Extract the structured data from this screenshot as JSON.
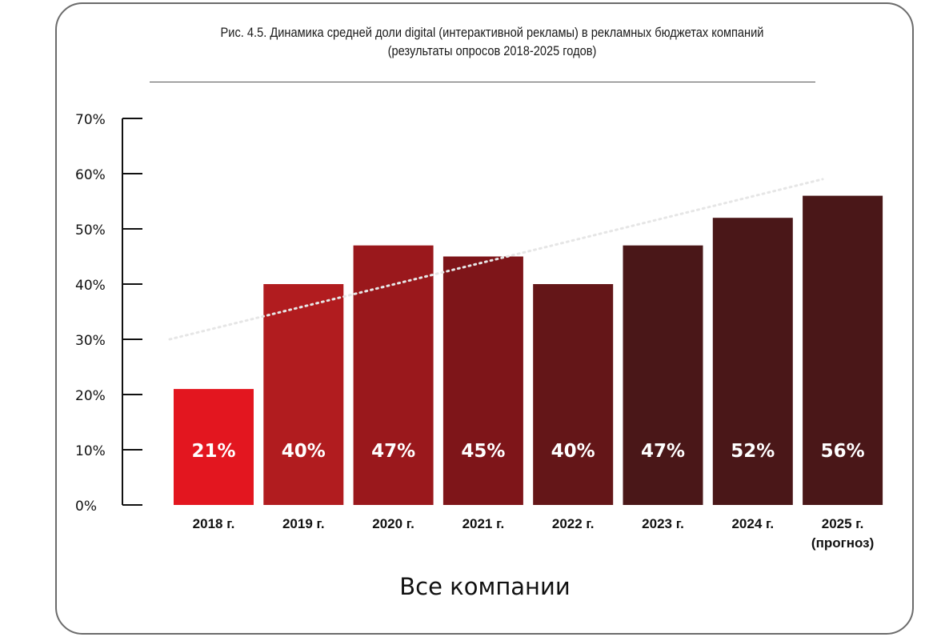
{
  "chart_data": {
    "type": "bar",
    "title": "Рис. 4.5. Динамика средней доли digital (интерактивной рекламы) в рекламных бюджетах компаний",
    "subtitle": "(результаты опросов 2018-2025 годов)",
    "xlabel": "Все компании",
    "ylabel": "",
    "ylim": [
      0,
      70
    ],
    "y_ticks": [
      "0%",
      "10%",
      "20%",
      "30%",
      "40%",
      "50%",
      "60%",
      "70%"
    ],
    "y_tick_values": [
      0,
      10,
      20,
      30,
      40,
      50,
      60,
      70
    ],
    "categories": [
      "2018 г.",
      "2019 г.",
      "2020 г.",
      "2021 г.",
      "2022 г.",
      "2023 г.",
      "2024 г.",
      "2025 г."
    ],
    "category_notes": [
      "",
      "",
      "",
      "",
      "",
      "",
      "",
      "(прогноз)"
    ],
    "values": [
      21,
      40,
      47,
      45,
      40,
      47,
      52,
      56
    ],
    "data_labels": [
      "21%",
      "40%",
      "47%",
      "45%",
      "40%",
      "47%",
      "52%",
      "56%"
    ],
    "bar_colors": [
      "#e3161f",
      "#b11c1f",
      "#9a181c",
      "#7e1519",
      "#641618",
      "#4a1718",
      "#4a1718",
      "#4a1718"
    ],
    "trendline": {
      "style": "dotted",
      "color": "#e6e6e6",
      "start_value": 30,
      "end_value": 59
    },
    "grid": false,
    "legend": "none"
  }
}
